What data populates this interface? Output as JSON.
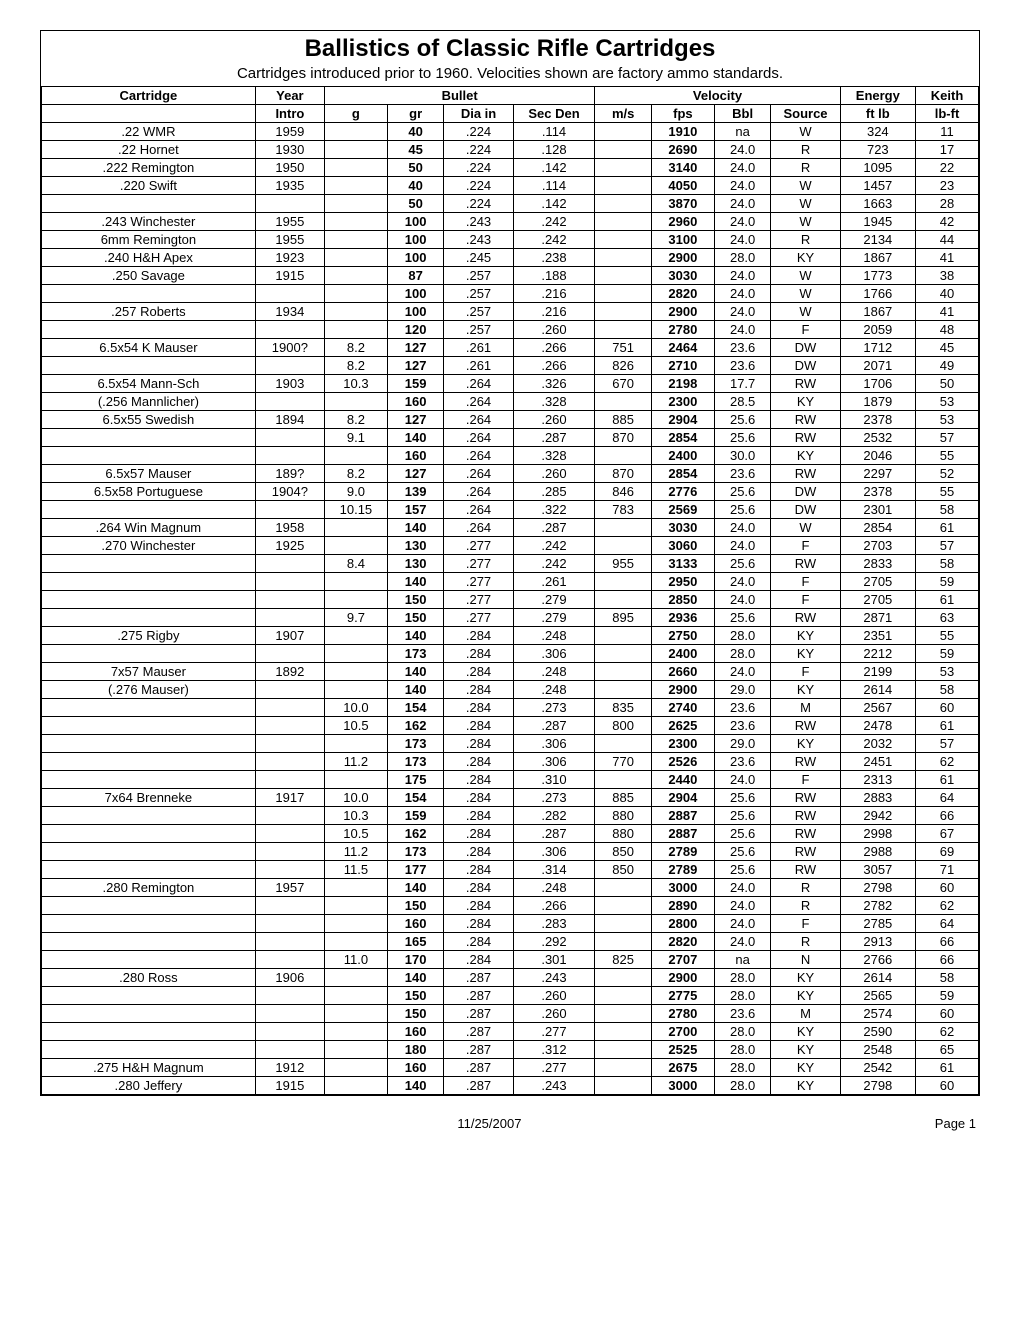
{
  "title": "Ballistics of Classic Rifle Cartridges",
  "subtitle": "Cartridges introduced prior to 1960.   Velocities shown are factory ammo standards.",
  "footer_date": "11/25/2007",
  "footer_page": "Page 1",
  "headers": {
    "group": [
      "Cartridge",
      "Year",
      "Bullet",
      "Velocity",
      "Energy",
      "Keith"
    ],
    "sub": [
      "",
      "Intro",
      "g",
      "gr",
      "Dia in",
      "Sec Den",
      "m/s",
      "fps",
      "Bbl",
      "Source",
      "ft lb",
      "lb-ft"
    ]
  },
  "rows": [
    {
      "name": ".22 WMR",
      "year": "1959",
      "g": "",
      "gr": "40",
      "dia": ".224",
      "sd": ".114",
      "ms": "",
      "fps": "1910",
      "bbl": "na",
      "src": "W",
      "en": "324",
      "k": "11"
    },
    {
      "name": ".22 Hornet",
      "year": "1930",
      "g": "",
      "gr": "45",
      "dia": ".224",
      "sd": ".128",
      "ms": "",
      "fps": "2690",
      "bbl": "24.0",
      "src": "R",
      "en": "723",
      "k": "17"
    },
    {
      "name": ".222 Remington",
      "year": "1950",
      "g": "",
      "gr": "50",
      "dia": ".224",
      "sd": ".142",
      "ms": "",
      "fps": "3140",
      "bbl": "24.0",
      "src": "R",
      "en": "1095",
      "k": "22"
    },
    {
      "name": ".220 Swift",
      "year": "1935",
      "g": "",
      "gr": "40",
      "dia": ".224",
      "sd": ".114",
      "ms": "",
      "fps": "4050",
      "bbl": "24.0",
      "src": "W",
      "en": "1457",
      "k": "23"
    },
    {
      "name": "",
      "year": "",
      "g": "",
      "gr": "50",
      "dia": ".224",
      "sd": ".142",
      "ms": "",
      "fps": "3870",
      "bbl": "24.0",
      "src": "W",
      "en": "1663",
      "k": "28"
    },
    {
      "name": ".243 Winchester",
      "year": "1955",
      "g": "",
      "gr": "100",
      "dia": ".243",
      "sd": ".242",
      "ms": "",
      "fps": "2960",
      "bbl": "24.0",
      "src": "W",
      "en": "1945",
      "k": "42"
    },
    {
      "name": "6mm Remington",
      "year": "1955",
      "g": "",
      "gr": "100",
      "dia": ".243",
      "sd": ".242",
      "ms": "",
      "fps": "3100",
      "bbl": "24.0",
      "src": "R",
      "en": "2134",
      "k": "44"
    },
    {
      "name": ".240 H&H Apex",
      "year": "1923",
      "g": "",
      "gr": "100",
      "dia": ".245",
      "sd": ".238",
      "ms": "",
      "fps": "2900",
      "bbl": "28.0",
      "src": "KY",
      "en": "1867",
      "k": "41"
    },
    {
      "name": ".250 Savage",
      "year": "1915",
      "g": "",
      "gr": "87",
      "dia": ".257",
      "sd": ".188",
      "ms": "",
      "fps": "3030",
      "bbl": "24.0",
      "src": "W",
      "en": "1773",
      "k": "38"
    },
    {
      "name": "",
      "year": "",
      "g": "",
      "gr": "100",
      "dia": ".257",
      "sd": ".216",
      "ms": "",
      "fps": "2820",
      "bbl": "24.0",
      "src": "W",
      "en": "1766",
      "k": "40"
    },
    {
      "name": ".257 Roberts",
      "year": "1934",
      "g": "",
      "gr": "100",
      "dia": ".257",
      "sd": ".216",
      "ms": "",
      "fps": "2900",
      "bbl": "24.0",
      "src": "W",
      "en": "1867",
      "k": "41"
    },
    {
      "name": "",
      "year": "",
      "g": "",
      "gr": "120",
      "dia": ".257",
      "sd": ".260",
      "ms": "",
      "fps": "2780",
      "bbl": "24.0",
      "src": "F",
      "en": "2059",
      "k": "48"
    },
    {
      "name": "6.5x54 K Mauser",
      "year": "1900?",
      "g": "8.2",
      "gr": "127",
      "dia": ".261",
      "sd": ".266",
      "ms": "751",
      "fps": "2464",
      "bbl": "23.6",
      "src": "DW",
      "en": "1712",
      "k": "45"
    },
    {
      "name": "",
      "year": "",
      "g": "8.2",
      "gr": "127",
      "dia": ".261",
      "sd": ".266",
      "ms": "826",
      "fps": "2710",
      "bbl": "23.6",
      "src": "DW",
      "en": "2071",
      "k": "49"
    },
    {
      "name": "6.5x54 Mann-Sch",
      "year": "1903",
      "g": "10.3",
      "gr": "159",
      "dia": ".264",
      "sd": ".326",
      "ms": "670",
      "fps": "2198",
      "bbl": "17.7",
      "src": "RW",
      "en": "1706",
      "k": "50"
    },
    {
      "name": "(.256 Mannlicher)",
      "year": "",
      "g": "",
      "gr": "160",
      "dia": ".264",
      "sd": ".328",
      "ms": "",
      "fps": "2300",
      "bbl": "28.5",
      "src": "KY",
      "en": "1879",
      "k": "53"
    },
    {
      "name": "6.5x55 Swedish",
      "year": "1894",
      "g": "8.2",
      "gr": "127",
      "dia": ".264",
      "sd": ".260",
      "ms": "885",
      "fps": "2904",
      "bbl": "25.6",
      "src": "RW",
      "en": "2378",
      "k": "53"
    },
    {
      "name": "",
      "year": "",
      "g": "9.1",
      "gr": "140",
      "dia": ".264",
      "sd": ".287",
      "ms": "870",
      "fps": "2854",
      "bbl": "25.6",
      "src": "RW",
      "en": "2532",
      "k": "57"
    },
    {
      "name": "",
      "year": "",
      "g": "",
      "gr": "160",
      "dia": ".264",
      "sd": ".328",
      "ms": "",
      "fps": "2400",
      "bbl": "30.0",
      "src": "KY",
      "en": "2046",
      "k": "55"
    },
    {
      "name": "6.5x57 Mauser",
      "year": "189?",
      "g": "8.2",
      "gr": "127",
      "dia": ".264",
      "sd": ".260",
      "ms": "870",
      "fps": "2854",
      "bbl": "23.6",
      "src": "RW",
      "en": "2297",
      "k": "52"
    },
    {
      "name": "6.5x58 Portuguese",
      "year": "1904?",
      "g": "9.0",
      "gr": "139",
      "dia": ".264",
      "sd": ".285",
      "ms": "846",
      "fps": "2776",
      "bbl": "25.6",
      "src": "DW",
      "en": "2378",
      "k": "55"
    },
    {
      "name": "",
      "year": "",
      "g": "10.15",
      "gr": "157",
      "dia": ".264",
      "sd": ".322",
      "ms": "783",
      "fps": "2569",
      "bbl": "25.6",
      "src": "DW",
      "en": "2301",
      "k": "58"
    },
    {
      "name": ".264 Win Magnum",
      "year": "1958",
      "g": "",
      "gr": "140",
      "dia": ".264",
      "sd": ".287",
      "ms": "",
      "fps": "3030",
      "bbl": "24.0",
      "src": "W",
      "en": "2854",
      "k": "61"
    },
    {
      "name": ".270 Winchester",
      "year": "1925",
      "g": "",
      "gr": "130",
      "dia": ".277",
      "sd": ".242",
      "ms": "",
      "fps": "3060",
      "bbl": "24.0",
      "src": "F",
      "en": "2703",
      "k": "57"
    },
    {
      "name": "",
      "year": "",
      "g": "8.4",
      "gr": "130",
      "dia": ".277",
      "sd": ".242",
      "ms": "955",
      "fps": "3133",
      "bbl": "25.6",
      "src": "RW",
      "en": "2833",
      "k": "58"
    },
    {
      "name": "",
      "year": "",
      "g": "",
      "gr": "140",
      "dia": ".277",
      "sd": ".261",
      "ms": "",
      "fps": "2950",
      "bbl": "24.0",
      "src": "F",
      "en": "2705",
      "k": "59"
    },
    {
      "name": "",
      "year": "",
      "g": "",
      "gr": "150",
      "dia": ".277",
      "sd": ".279",
      "ms": "",
      "fps": "2850",
      "bbl": "24.0",
      "src": "F",
      "en": "2705",
      "k": "61"
    },
    {
      "name": "",
      "year": "",
      "g": "9.7",
      "gr": "150",
      "dia": ".277",
      "sd": ".279",
      "ms": "895",
      "fps": "2936",
      "bbl": "25.6",
      "src": "RW",
      "en": "2871",
      "k": "63"
    },
    {
      "name": ".275 Rigby",
      "year": "1907",
      "g": "",
      "gr": "140",
      "dia": ".284",
      "sd": ".248",
      "ms": "",
      "fps": "2750",
      "bbl": "28.0",
      "src": "KY",
      "en": "2351",
      "k": "55"
    },
    {
      "name": "",
      "year": "",
      "g": "",
      "gr": "173",
      "dia": ".284",
      "sd": ".306",
      "ms": "",
      "fps": "2400",
      "bbl": "28.0",
      "src": "KY",
      "en": "2212",
      "k": "59"
    },
    {
      "name": "7x57 Mauser",
      "year": "1892",
      "g": "",
      "gr": "140",
      "dia": ".284",
      "sd": ".248",
      "ms": "",
      "fps": "2660",
      "bbl": "24.0",
      "src": "F",
      "en": "2199",
      "k": "53"
    },
    {
      "name": "(.276 Mauser)",
      "year": "",
      "g": "",
      "gr": "140",
      "dia": ".284",
      "sd": ".248",
      "ms": "",
      "fps": "2900",
      "bbl": "29.0",
      "src": "KY",
      "en": "2614",
      "k": "58"
    },
    {
      "name": "",
      "year": "",
      "g": "10.0",
      "gr": "154",
      "dia": ".284",
      "sd": ".273",
      "ms": "835",
      "fps": "2740",
      "bbl": "23.6",
      "src": "M",
      "en": "2567",
      "k": "60"
    },
    {
      "name": "",
      "year": "",
      "g": "10.5",
      "gr": "162",
      "dia": ".284",
      "sd": ".287",
      "ms": "800",
      "fps": "2625",
      "bbl": "23.6",
      "src": "RW",
      "en": "2478",
      "k": "61"
    },
    {
      "name": "",
      "year": "",
      "g": "",
      "gr": "173",
      "dia": ".284",
      "sd": ".306",
      "ms": "",
      "fps": "2300",
      "bbl": "29.0",
      "src": "KY",
      "en": "2032",
      "k": "57"
    },
    {
      "name": "",
      "year": "",
      "g": "11.2",
      "gr": "173",
      "dia": ".284",
      "sd": ".306",
      "ms": "770",
      "fps": "2526",
      "bbl": "23.6",
      "src": "RW",
      "en": "2451",
      "k": "62"
    },
    {
      "name": "",
      "year": "",
      "g": "",
      "gr": "175",
      "dia": ".284",
      "sd": ".310",
      "ms": "",
      "fps": "2440",
      "bbl": "24.0",
      "src": "F",
      "en": "2313",
      "k": "61"
    },
    {
      "name": "7x64 Brenneke",
      "year": "1917",
      "g": "10.0",
      "gr": "154",
      "dia": ".284",
      "sd": ".273",
      "ms": "885",
      "fps": "2904",
      "bbl": "25.6",
      "src": "RW",
      "en": "2883",
      "k": "64"
    },
    {
      "name": "",
      "year": "",
      "g": "10.3",
      "gr": "159",
      "dia": ".284",
      "sd": ".282",
      "ms": "880",
      "fps": "2887",
      "bbl": "25.6",
      "src": "RW",
      "en": "2942",
      "k": "66"
    },
    {
      "name": "",
      "year": "",
      "g": "10.5",
      "gr": "162",
      "dia": ".284",
      "sd": ".287",
      "ms": "880",
      "fps": "2887",
      "bbl": "25.6",
      "src": "RW",
      "en": "2998",
      "k": "67"
    },
    {
      "name": "",
      "year": "",
      "g": "11.2",
      "gr": "173",
      "dia": ".284",
      "sd": ".306",
      "ms": "850",
      "fps": "2789",
      "bbl": "25.6",
      "src": "RW",
      "en": "2988",
      "k": "69"
    },
    {
      "name": "",
      "year": "",
      "g": "11.5",
      "gr": "177",
      "dia": ".284",
      "sd": ".314",
      "ms": "850",
      "fps": "2789",
      "bbl": "25.6",
      "src": "RW",
      "en": "3057",
      "k": "71"
    },
    {
      "name": ".280 Remington",
      "year": "1957",
      "g": "",
      "gr": "140",
      "dia": ".284",
      "sd": ".248",
      "ms": "",
      "fps": "3000",
      "bbl": "24.0",
      "src": "R",
      "en": "2798",
      "k": "60"
    },
    {
      "name": "",
      "year": "",
      "g": "",
      "gr": "150",
      "dia": ".284",
      "sd": ".266",
      "ms": "",
      "fps": "2890",
      "bbl": "24.0",
      "src": "R",
      "en": "2782",
      "k": "62"
    },
    {
      "name": "",
      "year": "",
      "g": "",
      "gr": "160",
      "dia": ".284",
      "sd": ".283",
      "ms": "",
      "fps": "2800",
      "bbl": "24.0",
      "src": "F",
      "en": "2785",
      "k": "64"
    },
    {
      "name": "",
      "year": "",
      "g": "",
      "gr": "165",
      "dia": ".284",
      "sd": ".292",
      "ms": "",
      "fps": "2820",
      "bbl": "24.0",
      "src": "R",
      "en": "2913",
      "k": "66"
    },
    {
      "name": "",
      "year": "",
      "g": "11.0",
      "gr": "170",
      "dia": ".284",
      "sd": ".301",
      "ms": "825",
      "fps": "2707",
      "bbl": "na",
      "src": "N",
      "en": "2766",
      "k": "66"
    },
    {
      "name": ".280 Ross",
      "year": "1906",
      "g": "",
      "gr": "140",
      "dia": ".287",
      "sd": ".243",
      "ms": "",
      "fps": "2900",
      "bbl": "28.0",
      "src": "KY",
      "en": "2614",
      "k": "58"
    },
    {
      "name": "",
      "year": "",
      "g": "",
      "gr": "150",
      "dia": ".287",
      "sd": ".260",
      "ms": "",
      "fps": "2775",
      "bbl": "28.0",
      "src": "KY",
      "en": "2565",
      "k": "59"
    },
    {
      "name": "",
      "year": "",
      "g": "",
      "gr": "150",
      "dia": ".287",
      "sd": ".260",
      "ms": "",
      "fps": "2780",
      "bbl": "23.6",
      "src": "M",
      "en": "2574",
      "k": "60"
    },
    {
      "name": "",
      "year": "",
      "g": "",
      "gr": "160",
      "dia": ".287",
      "sd": ".277",
      "ms": "",
      "fps": "2700",
      "bbl": "28.0",
      "src": "KY",
      "en": "2590",
      "k": "62"
    },
    {
      "name": "",
      "year": "",
      "g": "",
      "gr": "180",
      "dia": ".287",
      "sd": ".312",
      "ms": "",
      "fps": "2525",
      "bbl": "28.0",
      "src": "KY",
      "en": "2548",
      "k": "65"
    },
    {
      "name": ".275 H&H Magnum",
      "year": "1912",
      "g": "",
      "gr": "160",
      "dia": ".287",
      "sd": ".277",
      "ms": "",
      "fps": "2675",
      "bbl": "28.0",
      "src": "KY",
      "en": "2542",
      "k": "61"
    },
    {
      "name": ".280 Jeffery",
      "year": "1915",
      "g": "",
      "gr": "140",
      "dia": ".287",
      "sd": ".243",
      "ms": "",
      "fps": "3000",
      "bbl": "28.0",
      "src": "KY",
      "en": "2798",
      "k": "60"
    }
  ]
}
